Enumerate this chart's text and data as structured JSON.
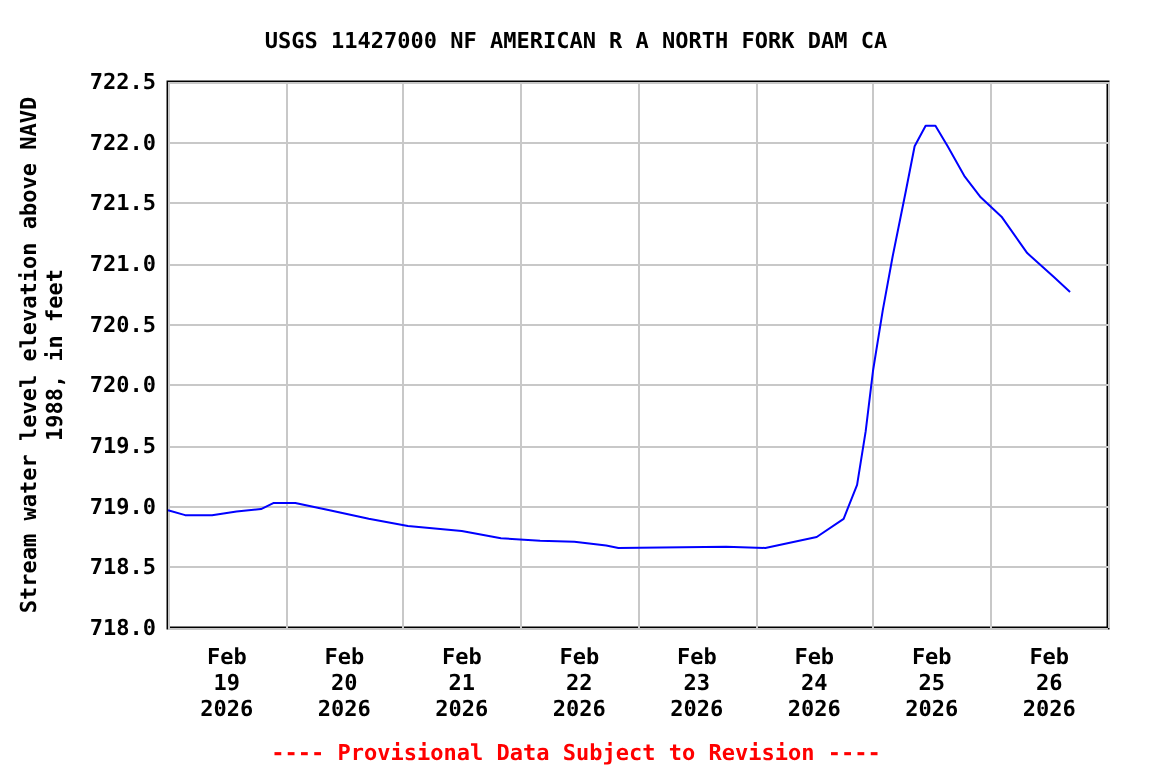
{
  "chart_data": {
    "type": "line",
    "title": "USGS 11427000 NF AMERICAN R A NORTH FORK DAM CA",
    "ylabel": "Stream water level elevation above NAVD 1988, in feet",
    "annotations": [
      "---- Provisional Data Subject to Revision ----"
    ],
    "x": [
      "2026-02-19T00:00",
      "2026-02-19T03:30",
      "2026-02-19T09:00",
      "2026-02-19T14:00",
      "2026-02-19T19:00",
      "2026-02-19T21:30",
      "2026-02-20T02:00",
      "2026-02-20T09:00",
      "2026-02-20T17:00",
      "2026-02-21T01:00",
      "2026-02-21T12:00",
      "2026-02-21T20:00",
      "2026-02-22T04:00",
      "2026-02-22T11:00",
      "2026-02-22T17:30",
      "2026-02-22T20:00",
      "2026-02-23T18:00",
      "2026-02-24T02:00",
      "2026-02-24T12:30",
      "2026-02-24T18:00",
      "2026-02-24T20:45",
      "2026-02-24T22:30",
      "2026-02-25T00:00",
      "2026-02-25T02:00",
      "2026-02-25T04:00",
      "2026-02-25T06:45",
      "2026-02-25T08:30",
      "2026-02-25T10:45",
      "2026-02-25T12:45",
      "2026-02-25T15:15",
      "2026-02-25T18:45",
      "2026-02-25T22:00",
      "2026-02-26T02:15",
      "2026-02-26T07:30",
      "2026-02-26T13:00",
      "2026-02-26T16:15"
    ],
    "series": [
      {
        "color": "#0000ff",
        "values": [
          718.97,
          718.93,
          718.93,
          718.96,
          718.98,
          719.03,
          719.03,
          718.97,
          718.9,
          718.84,
          718.8,
          718.74,
          718.72,
          718.71,
          718.68,
          718.66,
          718.67,
          718.66,
          718.75,
          718.9,
          719.18,
          719.62,
          720.12,
          720.62,
          721.06,
          721.61,
          721.97,
          722.14,
          722.14,
          721.97,
          721.72,
          721.55,
          721.39,
          721.09,
          720.89,
          720.77
        ]
      }
    ],
    "xlim": [
      "2026-02-19T00:00",
      "2026-02-27T00:00"
    ],
    "xticks": [
      {
        "value": "2026-02-19T00:00",
        "label": null
      },
      {
        "value": "2026-02-19T12:00",
        "label": "Feb\n19\n2026"
      },
      {
        "value": "2026-02-20T00:00",
        "label": null
      },
      {
        "value": "2026-02-20T12:00",
        "label": "Feb\n20\n2026"
      },
      {
        "value": "2026-02-21T00:00",
        "label": null
      },
      {
        "value": "2026-02-21T12:00",
        "label": "Feb\n21\n2026"
      },
      {
        "value": "2026-02-22T00:00",
        "label": null
      },
      {
        "value": "2026-02-22T12:00",
        "label": "Feb\n22\n2026"
      },
      {
        "value": "2026-02-23T00:00",
        "label": null
      },
      {
        "value": "2026-02-23T12:00",
        "label": "Feb\n23\n2026"
      },
      {
        "value": "2026-02-24T00:00",
        "label": null
      },
      {
        "value": "2026-02-24T12:00",
        "label": "Feb\n24\n2026"
      },
      {
        "value": "2026-02-25T00:00",
        "label": null
      },
      {
        "value": "2026-02-25T12:00",
        "label": "Feb\n25\n2026"
      },
      {
        "value": "2026-02-26T00:00",
        "label": null
      },
      {
        "value": "2026-02-26T12:00",
        "label": "Feb\n26\n2026"
      },
      {
        "value": "2026-02-27T00:00",
        "label": null
      }
    ],
    "ylim": [
      718,
      722.5
    ],
    "yticks": [
      {
        "value": 718,
        "label": "718.0"
      },
      {
        "value": 718.5,
        "label": "718.5"
      },
      {
        "value": 719,
        "label": "719.0"
      },
      {
        "value": 719.5,
        "label": "719.5"
      },
      {
        "value": 720,
        "label": "720.0"
      },
      {
        "value": 720.5,
        "label": "720.5"
      },
      {
        "value": 721,
        "label": "721.0"
      },
      {
        "value": 721.5,
        "label": "721.5"
      },
      {
        "value": 722,
        "label": "722.0"
      },
      {
        "value": 722.5,
        "label": "722.5"
      }
    ],
    "grid": true,
    "marker": "none",
    "line_style": "solid"
  }
}
